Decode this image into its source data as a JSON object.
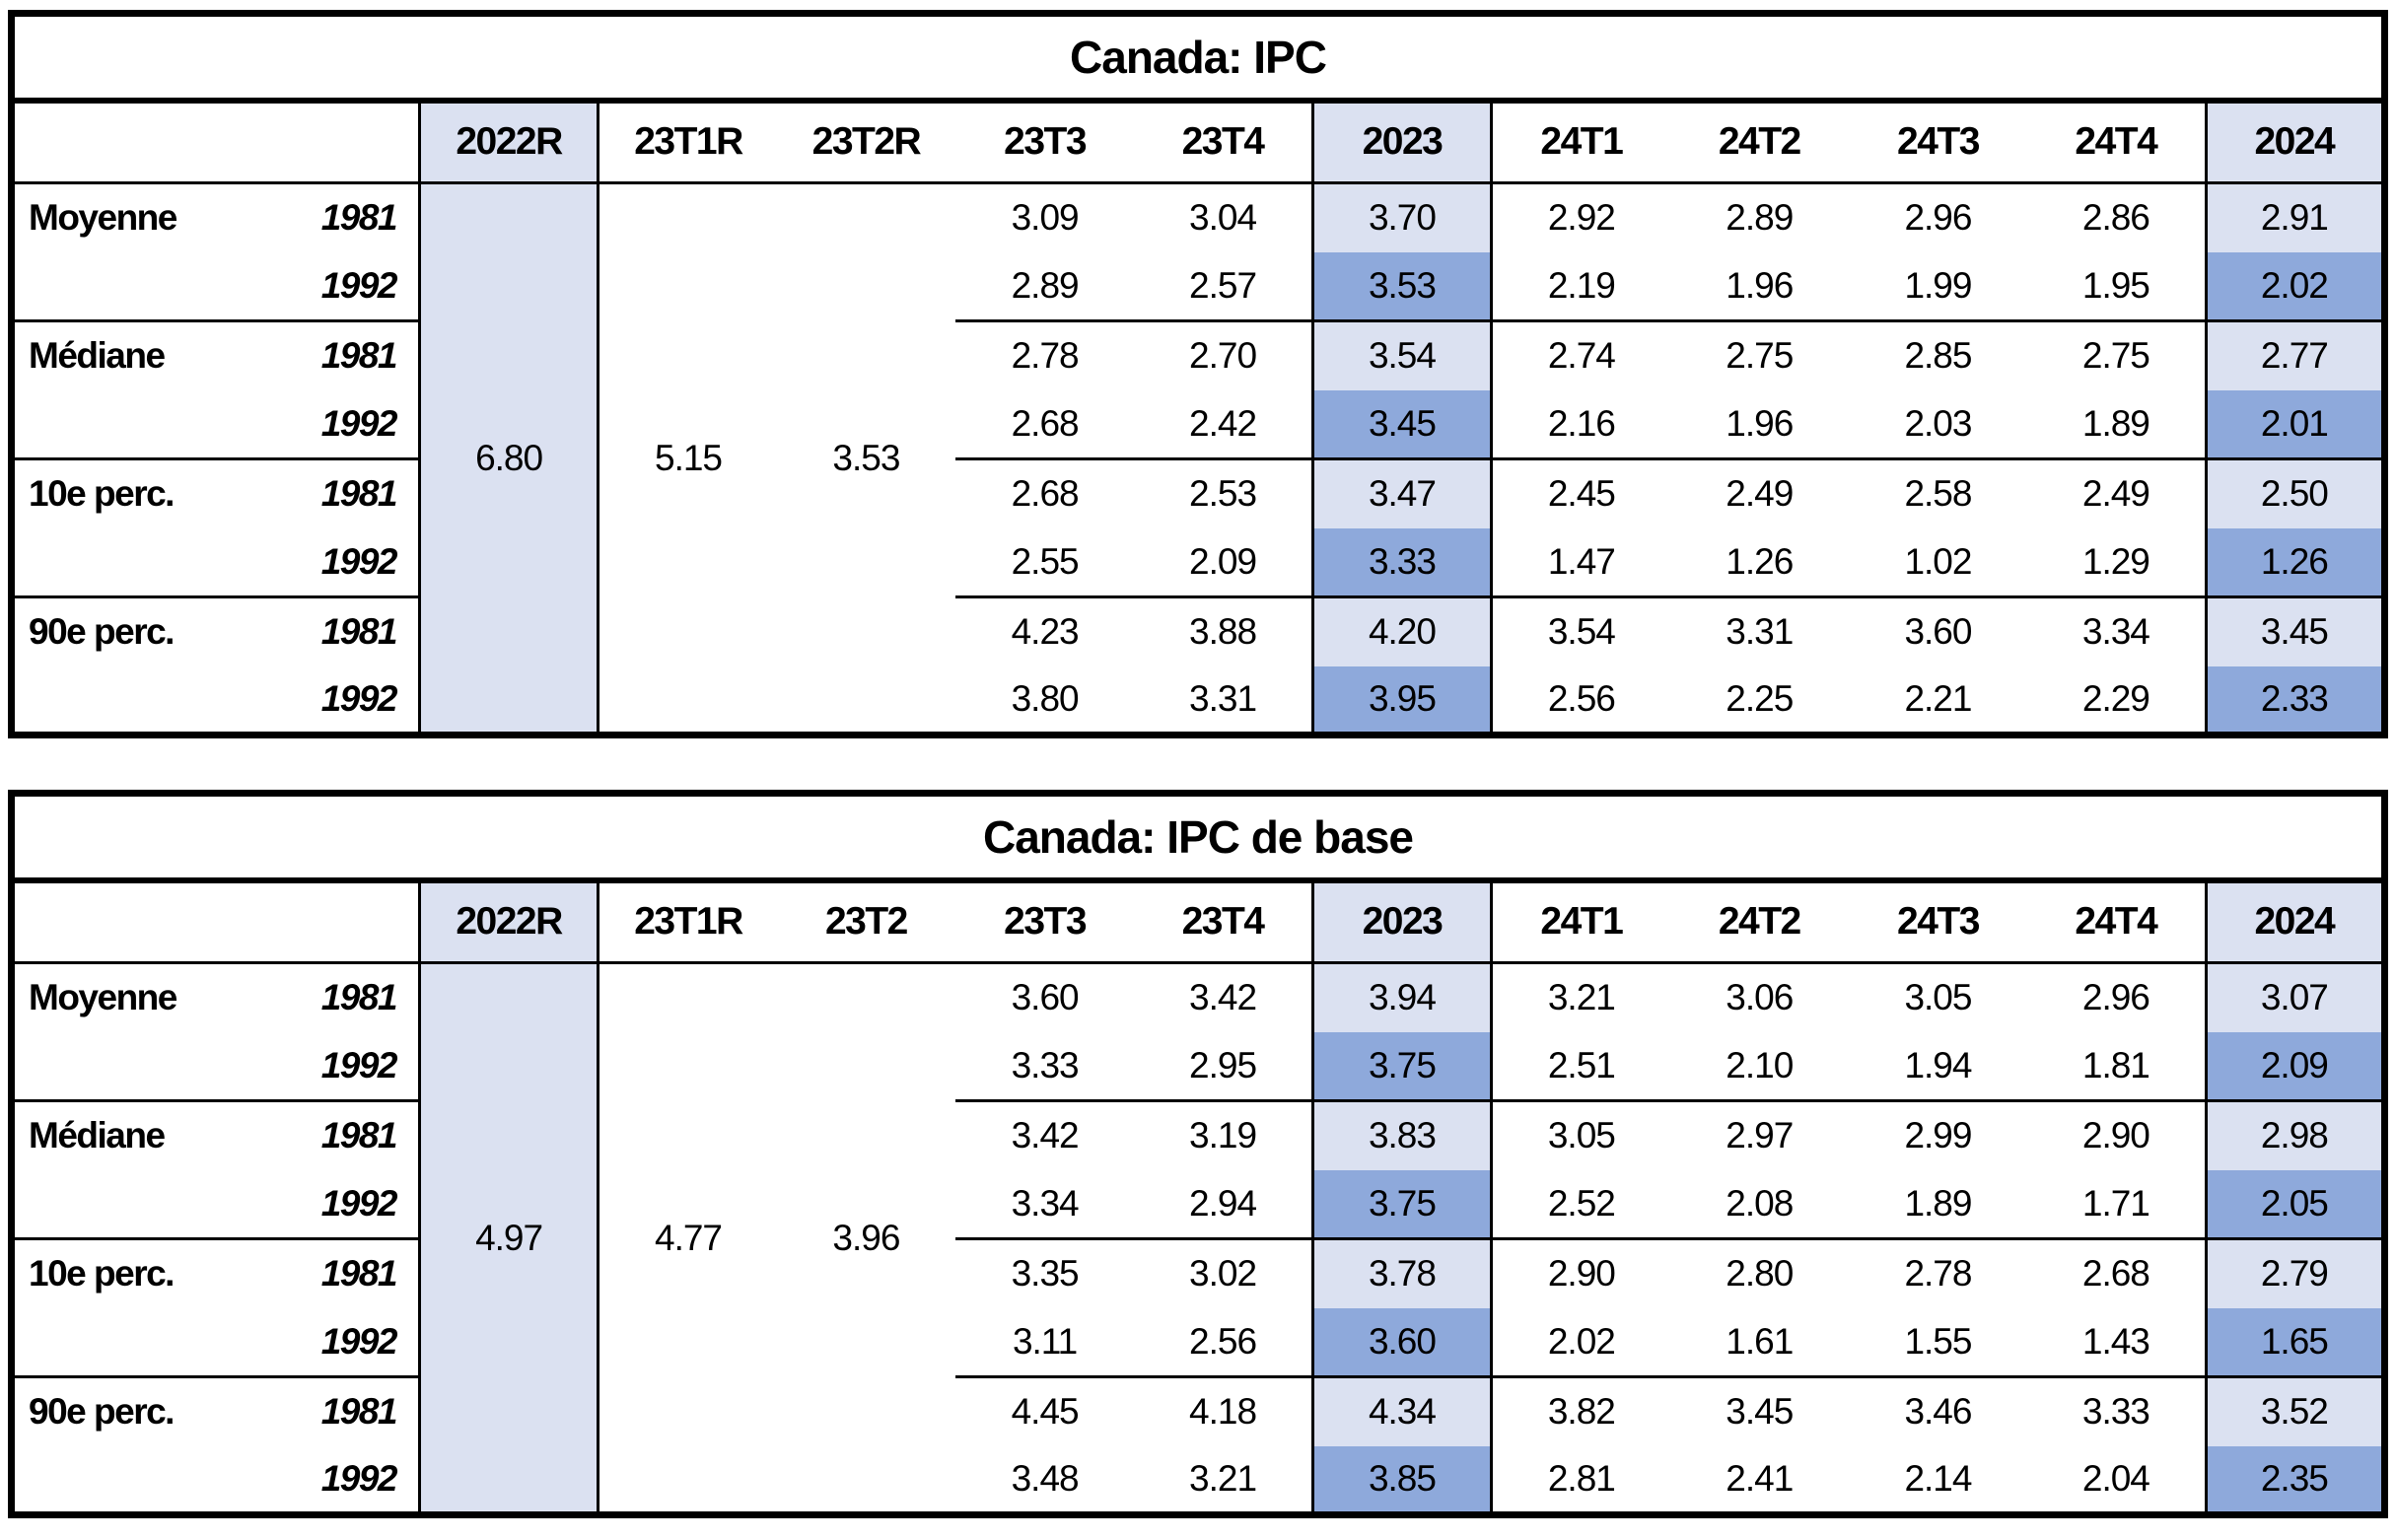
{
  "colors": {
    "shade_light": "#dbe1f1",
    "shade_dark": "#8ea9db",
    "border": "#000000",
    "background": "#ffffff"
  },
  "tables": [
    {
      "title": "Canada: IPC",
      "headers": [
        "2022R",
        "23T1R",
        "23T2R",
        "23T3",
        "23T4",
        "2023",
        "24T1",
        "24T2",
        "24T3",
        "24T4",
        "2024"
      ],
      "merged_values": [
        "6.80",
        "5.15",
        "3.53"
      ],
      "groups": [
        {
          "label": "Moyenne",
          "rows": [
            {
              "year": "1981",
              "values": [
                "3.09",
                "3.04",
                "3.70",
                "2.92",
                "2.89",
                "2.96",
                "2.86",
                "2.91"
              ]
            },
            {
              "year": "1992",
              "values": [
                "2.89",
                "2.57",
                "3.53",
                "2.19",
                "1.96",
                "1.99",
                "1.95",
                "2.02"
              ]
            }
          ]
        },
        {
          "label": "Médiane",
          "rows": [
            {
              "year": "1981",
              "values": [
                "2.78",
                "2.70",
                "3.54",
                "2.74",
                "2.75",
                "2.85",
                "2.75",
                "2.77"
              ]
            },
            {
              "year": "1992",
              "values": [
                "2.68",
                "2.42",
                "3.45",
                "2.16",
                "1.96",
                "2.03",
                "1.89",
                "2.01"
              ]
            }
          ]
        },
        {
          "label": "10e perc.",
          "rows": [
            {
              "year": "1981",
              "values": [
                "2.68",
                "2.53",
                "3.47",
                "2.45",
                "2.49",
                "2.58",
                "2.49",
                "2.50"
              ]
            },
            {
              "year": "1992",
              "values": [
                "2.55",
                "2.09",
                "3.33",
                "1.47",
                "1.26",
                "1.02",
                "1.29",
                "1.26"
              ]
            }
          ]
        },
        {
          "label": "90e perc.",
          "rows": [
            {
              "year": "1981",
              "values": [
                "4.23",
                "3.88",
                "4.20",
                "3.54",
                "3.31",
                "3.60",
                "3.34",
                "3.45"
              ]
            },
            {
              "year": "1992",
              "values": [
                "3.80",
                "3.31",
                "3.95",
                "2.56",
                "2.25",
                "2.21",
                "2.29",
                "2.33"
              ]
            }
          ]
        }
      ]
    },
    {
      "title": "Canada: IPC de base",
      "headers": [
        "2022R",
        "23T1R",
        "23T2",
        "23T3",
        "23T4",
        "2023",
        "24T1",
        "24T2",
        "24T3",
        "24T4",
        "2024"
      ],
      "merged_values": [
        "4.97",
        "4.77",
        "3.96"
      ],
      "groups": [
        {
          "label": "Moyenne",
          "rows": [
            {
              "year": "1981",
              "values": [
                "3.60",
                "3.42",
                "3.94",
                "3.21",
                "3.06",
                "3.05",
                "2.96",
                "3.07"
              ]
            },
            {
              "year": "1992",
              "values": [
                "3.33",
                "2.95",
                "3.75",
                "2.51",
                "2.10",
                "1.94",
                "1.81",
                "2.09"
              ]
            }
          ]
        },
        {
          "label": "Médiane",
          "rows": [
            {
              "year": "1981",
              "values": [
                "3.42",
                "3.19",
                "3.83",
                "3.05",
                "2.97",
                "2.99",
                "2.90",
                "2.98"
              ]
            },
            {
              "year": "1992",
              "values": [
                "3.34",
                "2.94",
                "3.75",
                "2.52",
                "2.08",
                "1.89",
                "1.71",
                "2.05"
              ]
            }
          ]
        },
        {
          "label": "10e perc.",
          "rows": [
            {
              "year": "1981",
              "values": [
                "3.35",
                "3.02",
                "3.78",
                "2.90",
                "2.80",
                "2.78",
                "2.68",
                "2.79"
              ]
            },
            {
              "year": "1992",
              "values": [
                "3.11",
                "2.56",
                "3.60",
                "2.02",
                "1.61",
                "1.55",
                "1.43",
                "1.65"
              ]
            }
          ]
        },
        {
          "label": "90e perc.",
          "rows": [
            {
              "year": "1981",
              "values": [
                "4.45",
                "4.18",
                "4.34",
                "3.82",
                "3.45",
                "3.46",
                "3.33",
                "3.52"
              ]
            },
            {
              "year": "1992",
              "values": [
                "3.48",
                "3.21",
                "3.85",
                "2.81",
                "2.41",
                "2.14",
                "2.04",
                "2.35"
              ]
            }
          ]
        }
      ]
    }
  ]
}
